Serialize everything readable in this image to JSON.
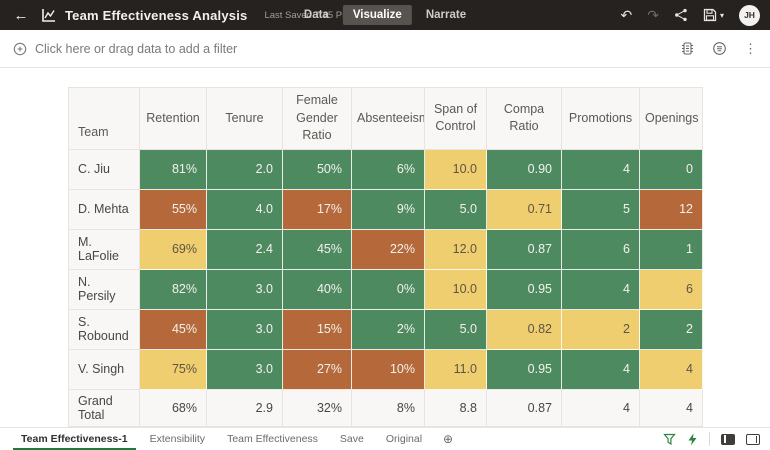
{
  "topbar": {
    "title": "Team Effectiveness Analysis",
    "last_saved": "Last Saved 7:45 PM",
    "tabs": [
      {
        "label": "Data",
        "active": false
      },
      {
        "label": "Visualize",
        "active": true
      },
      {
        "label": "Narrate",
        "active": false
      }
    ],
    "avatar": "JH"
  },
  "icons": {
    "back": "←",
    "undo": "↶",
    "redo": "↷",
    "caret_down": "▾",
    "more_options": "⋮",
    "add_canvas": "⊕"
  },
  "filter_bar": {
    "prompt": "Click here or drag data to add a filter"
  },
  "table": {
    "columns": [
      "Team",
      "Retention",
      "Tenure",
      "Female Gender Ratio",
      "Absenteeism",
      "Span of Control",
      "Compa Ratio",
      "Promotions",
      "Openings"
    ],
    "rows": [
      {
        "team": "C. Jiu",
        "cells": [
          {
            "v": "81%",
            "c": "green"
          },
          {
            "v": "2.0",
            "c": "green"
          },
          {
            "v": "50%",
            "c": "green"
          },
          {
            "v": "6%",
            "c": "green"
          },
          {
            "v": "10.0",
            "c": "yellow"
          },
          {
            "v": "0.90",
            "c": "green"
          },
          {
            "v": "4",
            "c": "green"
          },
          {
            "v": "0",
            "c": "green"
          }
        ]
      },
      {
        "team": "D. Mehta",
        "cells": [
          {
            "v": "55%",
            "c": "orange"
          },
          {
            "v": "4.0",
            "c": "green"
          },
          {
            "v": "17%",
            "c": "orange"
          },
          {
            "v": "9%",
            "c": "green"
          },
          {
            "v": "5.0",
            "c": "green"
          },
          {
            "v": "0.71",
            "c": "yellow"
          },
          {
            "v": "5",
            "c": "green"
          },
          {
            "v": "12",
            "c": "orange"
          }
        ]
      },
      {
        "team": "M. LaFolie",
        "cells": [
          {
            "v": "69%",
            "c": "yellow"
          },
          {
            "v": "2.4",
            "c": "green"
          },
          {
            "v": "45%",
            "c": "green"
          },
          {
            "v": "22%",
            "c": "orange"
          },
          {
            "v": "12.0",
            "c": "yellow"
          },
          {
            "v": "0.87",
            "c": "green"
          },
          {
            "v": "6",
            "c": "green"
          },
          {
            "v": "1",
            "c": "green"
          }
        ]
      },
      {
        "team": "N. Persily",
        "cells": [
          {
            "v": "82%",
            "c": "green"
          },
          {
            "v": "3.0",
            "c": "green"
          },
          {
            "v": "40%",
            "c": "green"
          },
          {
            "v": "0%",
            "c": "green"
          },
          {
            "v": "10.0",
            "c": "yellow"
          },
          {
            "v": "0.95",
            "c": "green"
          },
          {
            "v": "4",
            "c": "green"
          },
          {
            "v": "6",
            "c": "yellow"
          }
        ]
      },
      {
        "team": "S. Robound",
        "cells": [
          {
            "v": "45%",
            "c": "orange"
          },
          {
            "v": "3.0",
            "c": "green"
          },
          {
            "v": "15%",
            "c": "orange"
          },
          {
            "v": "2%",
            "c": "green"
          },
          {
            "v": "5.0",
            "c": "green"
          },
          {
            "v": "0.82",
            "c": "yellow"
          },
          {
            "v": "2",
            "c": "yellow"
          },
          {
            "v": "2",
            "c": "green"
          }
        ]
      },
      {
        "team": "V. Singh",
        "cells": [
          {
            "v": "75%",
            "c": "yellow"
          },
          {
            "v": "3.0",
            "c": "green"
          },
          {
            "v": "27%",
            "c": "orange"
          },
          {
            "v": "10%",
            "c": "orange"
          },
          {
            "v": "11.0",
            "c": "yellow"
          },
          {
            "v": "0.95",
            "c": "green"
          },
          {
            "v": "4",
            "c": "green"
          },
          {
            "v": "4",
            "c": "yellow"
          }
        ]
      }
    ],
    "grand_total": {
      "team": "Grand Total",
      "cells": [
        "68%",
        "2.9",
        "32%",
        "8%",
        "8.8",
        "0.87",
        "4",
        "4"
      ]
    }
  },
  "bottom_bar": {
    "tabs": [
      {
        "label": "Team Effectiveness-1",
        "active": true
      },
      {
        "label": "Extensibility",
        "active": false
      },
      {
        "label": "Team Effectiveness",
        "active": false
      },
      {
        "label": "Save",
        "active": false
      },
      {
        "label": "Original",
        "active": false
      }
    ]
  },
  "colors": {
    "green": "#4e8a5f",
    "yellow": "#efce70",
    "orange": "#b5693a",
    "text_on_dark_cell": "#f3f1ee",
    "text_on_yellow_cell": "#5e5544",
    "accent_green": "#1e7b3c"
  }
}
